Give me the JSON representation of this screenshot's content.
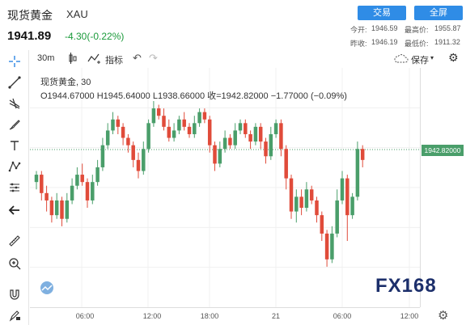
{
  "header": {
    "title": "现货黄金",
    "symbol": "XAU",
    "price": "1941.89",
    "change": "-4.30(-0.22%)",
    "trade_label": "交易",
    "fullscreen_label": "全屏",
    "today_open": "今开:",
    "today_open_val": "1946.59",
    "high_label": "最高价:",
    "high_val": "1955.87",
    "prev_close": "昨收:",
    "prev_close_val": "1946.19",
    "low_label": "最低价:",
    "low_val": "1911.32"
  },
  "toolbar": {
    "interval": "30m",
    "indicators": "指标",
    "save": "保存"
  },
  "chart": {
    "legend_title": "现货黄金, 30",
    "ohlc": "O1944.67000  H1945.64000  L1938.66000  收=1942.82000  −1.77000 (−0.09%)",
    "last_price": "1942.82000",
    "watermark": "FX168"
  },
  "colors": {
    "up": "#4a9e6a",
    "down": "#e04b3a",
    "accent": "#2f8ce6"
  },
  "chart_data": {
    "type": "candlestick",
    "x_ticks": [
      "06:00",
      "12:00",
      "18:00",
      "21",
      "06:00",
      "12:00"
    ],
    "last": 1942.82
  },
  "candles": [
    {
      "o": 1934,
      "c": 1936,
      "h": 1937,
      "l": 1932
    },
    {
      "o": 1936,
      "c": 1931,
      "h": 1937,
      "l": 1929
    },
    {
      "o": 1931,
      "c": 1929,
      "h": 1933,
      "l": 1926
    },
    {
      "o": 1929,
      "c": 1925,
      "h": 1930,
      "l": 1923
    },
    {
      "o": 1925,
      "c": 1929,
      "h": 1931,
      "l": 1924
    },
    {
      "o": 1929,
      "c": 1924,
      "h": 1930,
      "l": 1922
    },
    {
      "o": 1924,
      "c": 1929,
      "h": 1931,
      "l": 1923
    },
    {
      "o": 1929,
      "c": 1933,
      "h": 1935,
      "l": 1928
    },
    {
      "o": 1933,
      "c": 1936,
      "h": 1938,
      "l": 1932
    },
    {
      "o": 1936,
      "c": 1934,
      "h": 1939,
      "l": 1933
    },
    {
      "o": 1934,
      "c": 1929,
      "h": 1935,
      "l": 1927
    },
    {
      "o": 1929,
      "c": 1934,
      "h": 1936,
      "l": 1928
    },
    {
      "o": 1934,
      "c": 1938,
      "h": 1940,
      "l": 1933
    },
    {
      "o": 1938,
      "c": 1944,
      "h": 1946,
      "l": 1937
    },
    {
      "o": 1944,
      "c": 1948,
      "h": 1950,
      "l": 1943
    },
    {
      "o": 1948,
      "c": 1951,
      "h": 1953,
      "l": 1947
    },
    {
      "o": 1951,
      "c": 1949,
      "h": 1952,
      "l": 1947
    },
    {
      "o": 1949,
      "c": 1946,
      "h": 1950,
      "l": 1944
    },
    {
      "o": 1946,
      "c": 1944,
      "h": 1947,
      "l": 1942
    },
    {
      "o": 1944,
      "c": 1940,
      "h": 1945,
      "l": 1938
    },
    {
      "o": 1940,
      "c": 1937,
      "h": 1942,
      "l": 1935
    },
    {
      "o": 1937,
      "c": 1943,
      "h": 1945,
      "l": 1936
    },
    {
      "o": 1943,
      "c": 1950,
      "h": 1951,
      "l": 1942
    },
    {
      "o": 1950,
      "c": 1954,
      "h": 1956,
      "l": 1949
    },
    {
      "o": 1954,
      "c": 1952,
      "h": 1955,
      "l": 1951
    },
    {
      "o": 1952,
      "c": 1949,
      "h": 1954,
      "l": 1948
    },
    {
      "o": 1949,
      "c": 1946,
      "h": 1951,
      "l": 1945
    },
    {
      "o": 1946,
      "c": 1948,
      "h": 1950,
      "l": 1945
    },
    {
      "o": 1948,
      "c": 1951,
      "h": 1952,
      "l": 1947
    },
    {
      "o": 1951,
      "c": 1949,
      "h": 1953,
      "l": 1948
    },
    {
      "o": 1949,
      "c": 1947,
      "h": 1950,
      "l": 1946
    },
    {
      "o": 1947,
      "c": 1950,
      "h": 1952,
      "l": 1946
    },
    {
      "o": 1950,
      "c": 1953,
      "h": 1954,
      "l": 1949
    },
    {
      "o": 1953,
      "c": 1951,
      "h": 1954,
      "l": 1950
    },
    {
      "o": 1951,
      "c": 1944,
      "h": 1952,
      "l": 1942
    },
    {
      "o": 1944,
      "c": 1939,
      "h": 1945,
      "l": 1937
    },
    {
      "o": 1939,
      "c": 1943,
      "h": 1945,
      "l": 1938
    },
    {
      "o": 1943,
      "c": 1946,
      "h": 1948,
      "l": 1942
    },
    {
      "o": 1946,
      "c": 1944,
      "h": 1947,
      "l": 1943
    },
    {
      "o": 1944,
      "c": 1948,
      "h": 1950,
      "l": 1943
    },
    {
      "o": 1948,
      "c": 1950,
      "h": 1951,
      "l": 1947
    },
    {
      "o": 1950,
      "c": 1947,
      "h": 1951,
      "l": 1946
    },
    {
      "o": 1947,
      "c": 1945,
      "h": 1948,
      "l": 1943
    },
    {
      "o": 1945,
      "c": 1949,
      "h": 1950,
      "l": 1944
    },
    {
      "o": 1949,
      "c": 1945,
      "h": 1950,
      "l": 1943
    },
    {
      "o": 1945,
      "c": 1941,
      "h": 1946,
      "l": 1939
    },
    {
      "o": 1941,
      "c": 1947,
      "h": 1949,
      "l": 1940
    },
    {
      "o": 1947,
      "c": 1950,
      "h": 1951,
      "l": 1946
    },
    {
      "o": 1950,
      "c": 1943,
      "h": 1951,
      "l": 1941
    },
    {
      "o": 1943,
      "c": 1935,
      "h": 1944,
      "l": 1932
    },
    {
      "o": 1935,
      "c": 1926,
      "h": 1936,
      "l": 1924
    },
    {
      "o": 1926,
      "c": 1930,
      "h": 1932,
      "l": 1923
    },
    {
      "o": 1930,
      "c": 1927,
      "h": 1932,
      "l": 1925
    },
    {
      "o": 1927,
      "c": 1932,
      "h": 1934,
      "l": 1926
    },
    {
      "o": 1932,
      "c": 1929,
      "h": 1933,
      "l": 1928
    },
    {
      "o": 1929,
      "c": 1925,
      "h": 1930,
      "l": 1923
    },
    {
      "o": 1925,
      "c": 1920,
      "h": 1926,
      "l": 1918
    },
    {
      "o": 1920,
      "c": 1913,
      "h": 1921,
      "l": 1911
    },
    {
      "o": 1913,
      "c": 1920,
      "h": 1922,
      "l": 1912
    },
    {
      "o": 1920,
      "c": 1929,
      "h": 1932,
      "l": 1919
    },
    {
      "o": 1929,
      "c": 1935,
      "h": 1937,
      "l": 1928
    },
    {
      "o": 1935,
      "c": 1925,
      "h": 1936,
      "l": 1918
    },
    {
      "o": 1925,
      "c": 1930,
      "h": 1931,
      "l": 1924
    },
    {
      "o": 1930,
      "c": 1943,
      "h": 1945,
      "l": 1929
    },
    {
      "o": 1943,
      "c": 1940,
      "h": 1944,
      "l": 1938
    }
  ]
}
